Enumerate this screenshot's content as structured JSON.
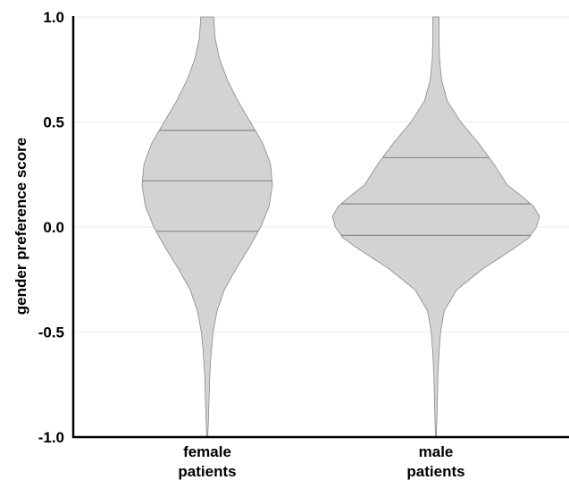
{
  "chart_data": {
    "type": "violin",
    "ylabel": "gender preference score",
    "xlabel": "",
    "ylim": [
      -1.0,
      1.0
    ],
    "yticks": [
      1.0,
      0.5,
      0.0,
      -0.5,
      -1.0
    ],
    "ytick_labels": [
      "1.0",
      "0.5",
      "0.0",
      "-0.5",
      "-1.0"
    ],
    "grid": "horizontal",
    "categories": [
      {
        "line1": "female",
        "line2": "patients"
      },
      {
        "line1": "male",
        "line2": "patients"
      }
    ],
    "series": [
      {
        "category": "female patients",
        "q1": -0.02,
        "median": 0.22,
        "q3": 0.46,
        "density_profile": [
          [
            -1.0,
            0.008
          ],
          [
            -0.9,
            0.02
          ],
          [
            -0.8,
            0.03
          ],
          [
            -0.7,
            0.04
          ],
          [
            -0.6,
            0.06
          ],
          [
            -0.5,
            0.09
          ],
          [
            -0.4,
            0.15
          ],
          [
            -0.3,
            0.26
          ],
          [
            -0.2,
            0.44
          ],
          [
            -0.1,
            0.64
          ],
          [
            0.0,
            0.82
          ],
          [
            0.1,
            0.95
          ],
          [
            0.2,
            1.0
          ],
          [
            0.3,
            0.97
          ],
          [
            0.4,
            0.85
          ],
          [
            0.5,
            0.66
          ],
          [
            0.6,
            0.47
          ],
          [
            0.7,
            0.31
          ],
          [
            0.8,
            0.19
          ],
          [
            0.9,
            0.12
          ],
          [
            1.0,
            0.1
          ]
        ],
        "fill_color": "#d3d3d3",
        "line_color": "#888888"
      },
      {
        "category": "male patients",
        "q1": -0.04,
        "median": 0.11,
        "q3": 0.33,
        "density_profile": [
          [
            -1.0,
            0.004
          ],
          [
            -0.9,
            0.01
          ],
          [
            -0.8,
            0.015
          ],
          [
            -0.7,
            0.02
          ],
          [
            -0.6,
            0.03
          ],
          [
            -0.5,
            0.045
          ],
          [
            -0.4,
            0.08
          ],
          [
            -0.3,
            0.2
          ],
          [
            -0.2,
            0.45
          ],
          [
            -0.1,
            0.76
          ],
          [
            -0.05,
            0.9
          ],
          [
            0.0,
            0.97
          ],
          [
            0.05,
            1.0
          ],
          [
            0.1,
            0.94
          ],
          [
            0.15,
            0.82
          ],
          [
            0.2,
            0.69
          ],
          [
            0.3,
            0.56
          ],
          [
            0.4,
            0.41
          ],
          [
            0.5,
            0.24
          ],
          [
            0.6,
            0.11
          ],
          [
            0.7,
            0.055
          ],
          [
            0.8,
            0.035
          ],
          [
            0.9,
            0.03
          ],
          [
            1.0,
            0.03
          ]
        ],
        "fill_color": "#d3d3d3",
        "line_color": "#888888"
      }
    ]
  }
}
